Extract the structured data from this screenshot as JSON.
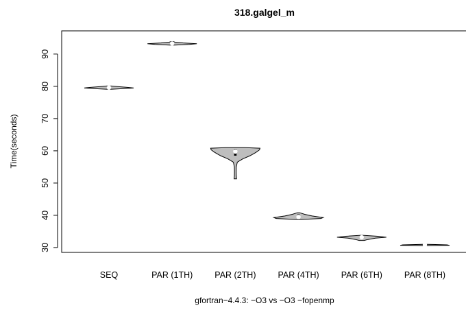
{
  "chart_data": {
    "type": "violin",
    "title": "318.galgel_m",
    "xlabel": "gfortran−4.4.3: −O3 vs −O3 −fopenmp",
    "ylabel": "Time(seconds)",
    "ylim": [
      28.5,
      97.2
    ],
    "yticks": [
      30,
      40,
      50,
      60,
      70,
      80,
      90
    ],
    "grid": false,
    "categories": [
      "SEQ",
      "PAR (1TH)",
      "PAR (2TH)",
      "PAR (4TH)",
      "PAR (6TH)",
      "PAR (8TH)"
    ],
    "series": [
      {
        "median": 79.6,
        "q1": 79.4,
        "q3": 79.8,
        "profile": [
          [
            79.1,
            0.1
          ],
          [
            79.3,
            0.6
          ],
          [
            79.5,
            1.0
          ],
          [
            79.7,
            0.7
          ],
          [
            79.9,
            0.35
          ],
          [
            80.1,
            0.1
          ]
        ]
      },
      {
        "median": 93.3,
        "q1": 93.1,
        "q3": 93.6,
        "profile": [
          [
            92.8,
            0.1
          ],
          [
            93.0,
            0.7
          ],
          [
            93.2,
            1.0
          ],
          [
            93.45,
            0.45
          ],
          [
            93.7,
            0.12
          ],
          [
            93.9,
            0.04
          ]
        ]
      },
      {
        "median": 59.8,
        "q1": 58.5,
        "q3": 60.6,
        "profile": [
          [
            51.3,
            0.05
          ],
          [
            52.3,
            0.04
          ],
          [
            53.5,
            0.035
          ],
          [
            55.0,
            0.04
          ],
          [
            56.5,
            0.08
          ],
          [
            57.5,
            0.3
          ],
          [
            58.5,
            0.6
          ],
          [
            59.5,
            0.83
          ],
          [
            60.3,
            0.98
          ],
          [
            60.8,
            1.0
          ],
          [
            61.0,
            0.4
          ]
        ]
      },
      {
        "median": 39.5,
        "q1": 39.0,
        "q3": 40.3,
        "profile": [
          [
            38.7,
            0.1
          ],
          [
            39.0,
            0.9
          ],
          [
            39.3,
            1.0
          ],
          [
            39.8,
            0.55
          ],
          [
            40.3,
            0.25
          ],
          [
            40.8,
            0.05
          ]
        ]
      },
      {
        "median": 33.2,
        "q1": 32.9,
        "q3": 33.4,
        "profile": [
          [
            32.2,
            0.1
          ],
          [
            32.5,
            0.25
          ],
          [
            32.9,
            0.55
          ],
          [
            33.2,
            1.0
          ],
          [
            33.5,
            0.65
          ],
          [
            33.8,
            0.05
          ]
        ]
      },
      {
        "median": 30.8,
        "q1": 30.7,
        "q3": 30.9,
        "profile": [
          [
            30.55,
            0.1
          ],
          [
            30.7,
            1.0
          ],
          [
            30.85,
            0.9
          ],
          [
            31.0,
            0.1
          ]
        ]
      }
    ],
    "colors": {
      "fill": "#bebebe",
      "stroke": "#000000",
      "median": "#ffffff",
      "box": "#000000"
    }
  }
}
